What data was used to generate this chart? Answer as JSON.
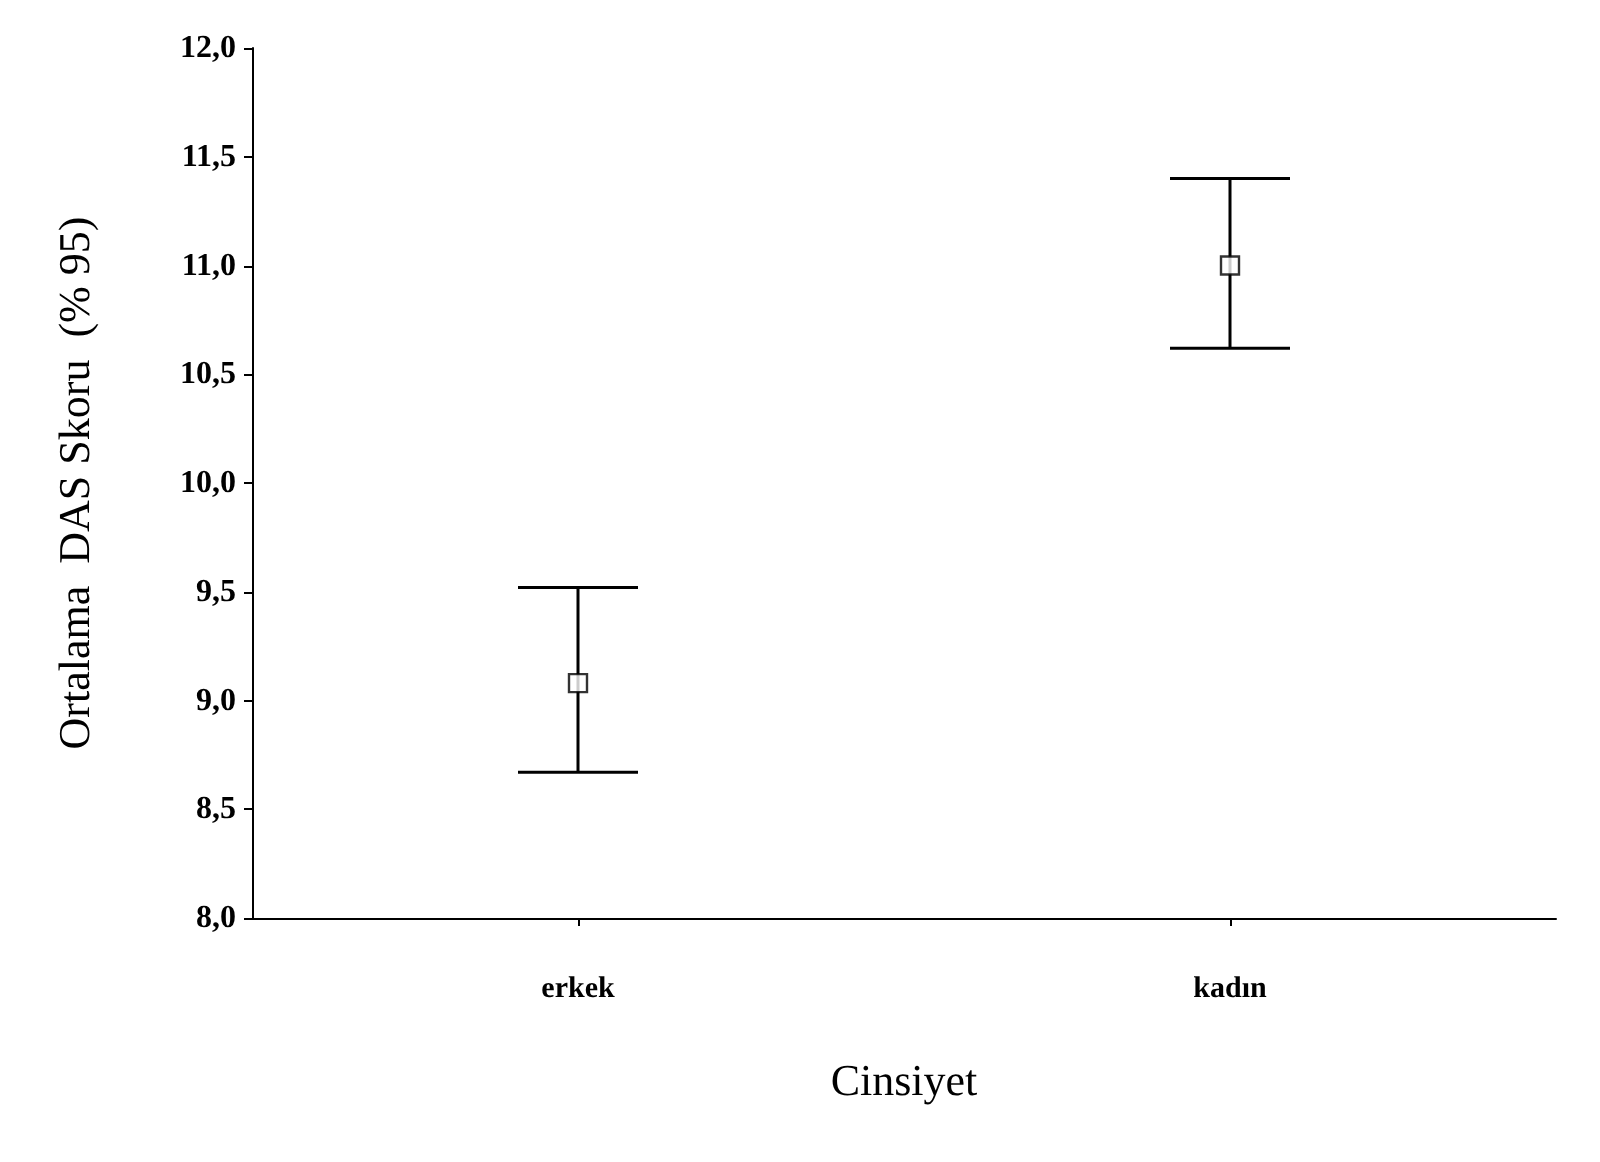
{
  "chart_data": {
    "type": "scatter",
    "xlabel": "Cinsiyet",
    "ylabel": "Ortalama  DAS Skoru  (% 95)",
    "categories": [
      "erkek",
      "kadın"
    ],
    "values": [
      9.08,
      11.0
    ],
    "errors": [
      [
        8.67,
        9.52
      ],
      [
        10.62,
        11.4
      ]
    ],
    "color": "#000000",
    "marker": "square",
    "grid": false,
    "ylim": [
      8,
      12
    ],
    "yticks": [
      {
        "value": 8,
        "label": "8,0"
      },
      {
        "value": 8.5,
        "label": "8,5"
      },
      {
        "value": 9,
        "label": "9,0"
      },
      {
        "value": 9.5,
        "label": "9,5"
      },
      {
        "value": 10,
        "label": "10,0"
      },
      {
        "value": 10.5,
        "label": "10,5"
      },
      {
        "value": 11,
        "label": "11,0"
      },
      {
        "value": 11.5,
        "label": "11,5"
      },
      {
        "value": 12,
        "label": "12,0"
      }
    ]
  }
}
